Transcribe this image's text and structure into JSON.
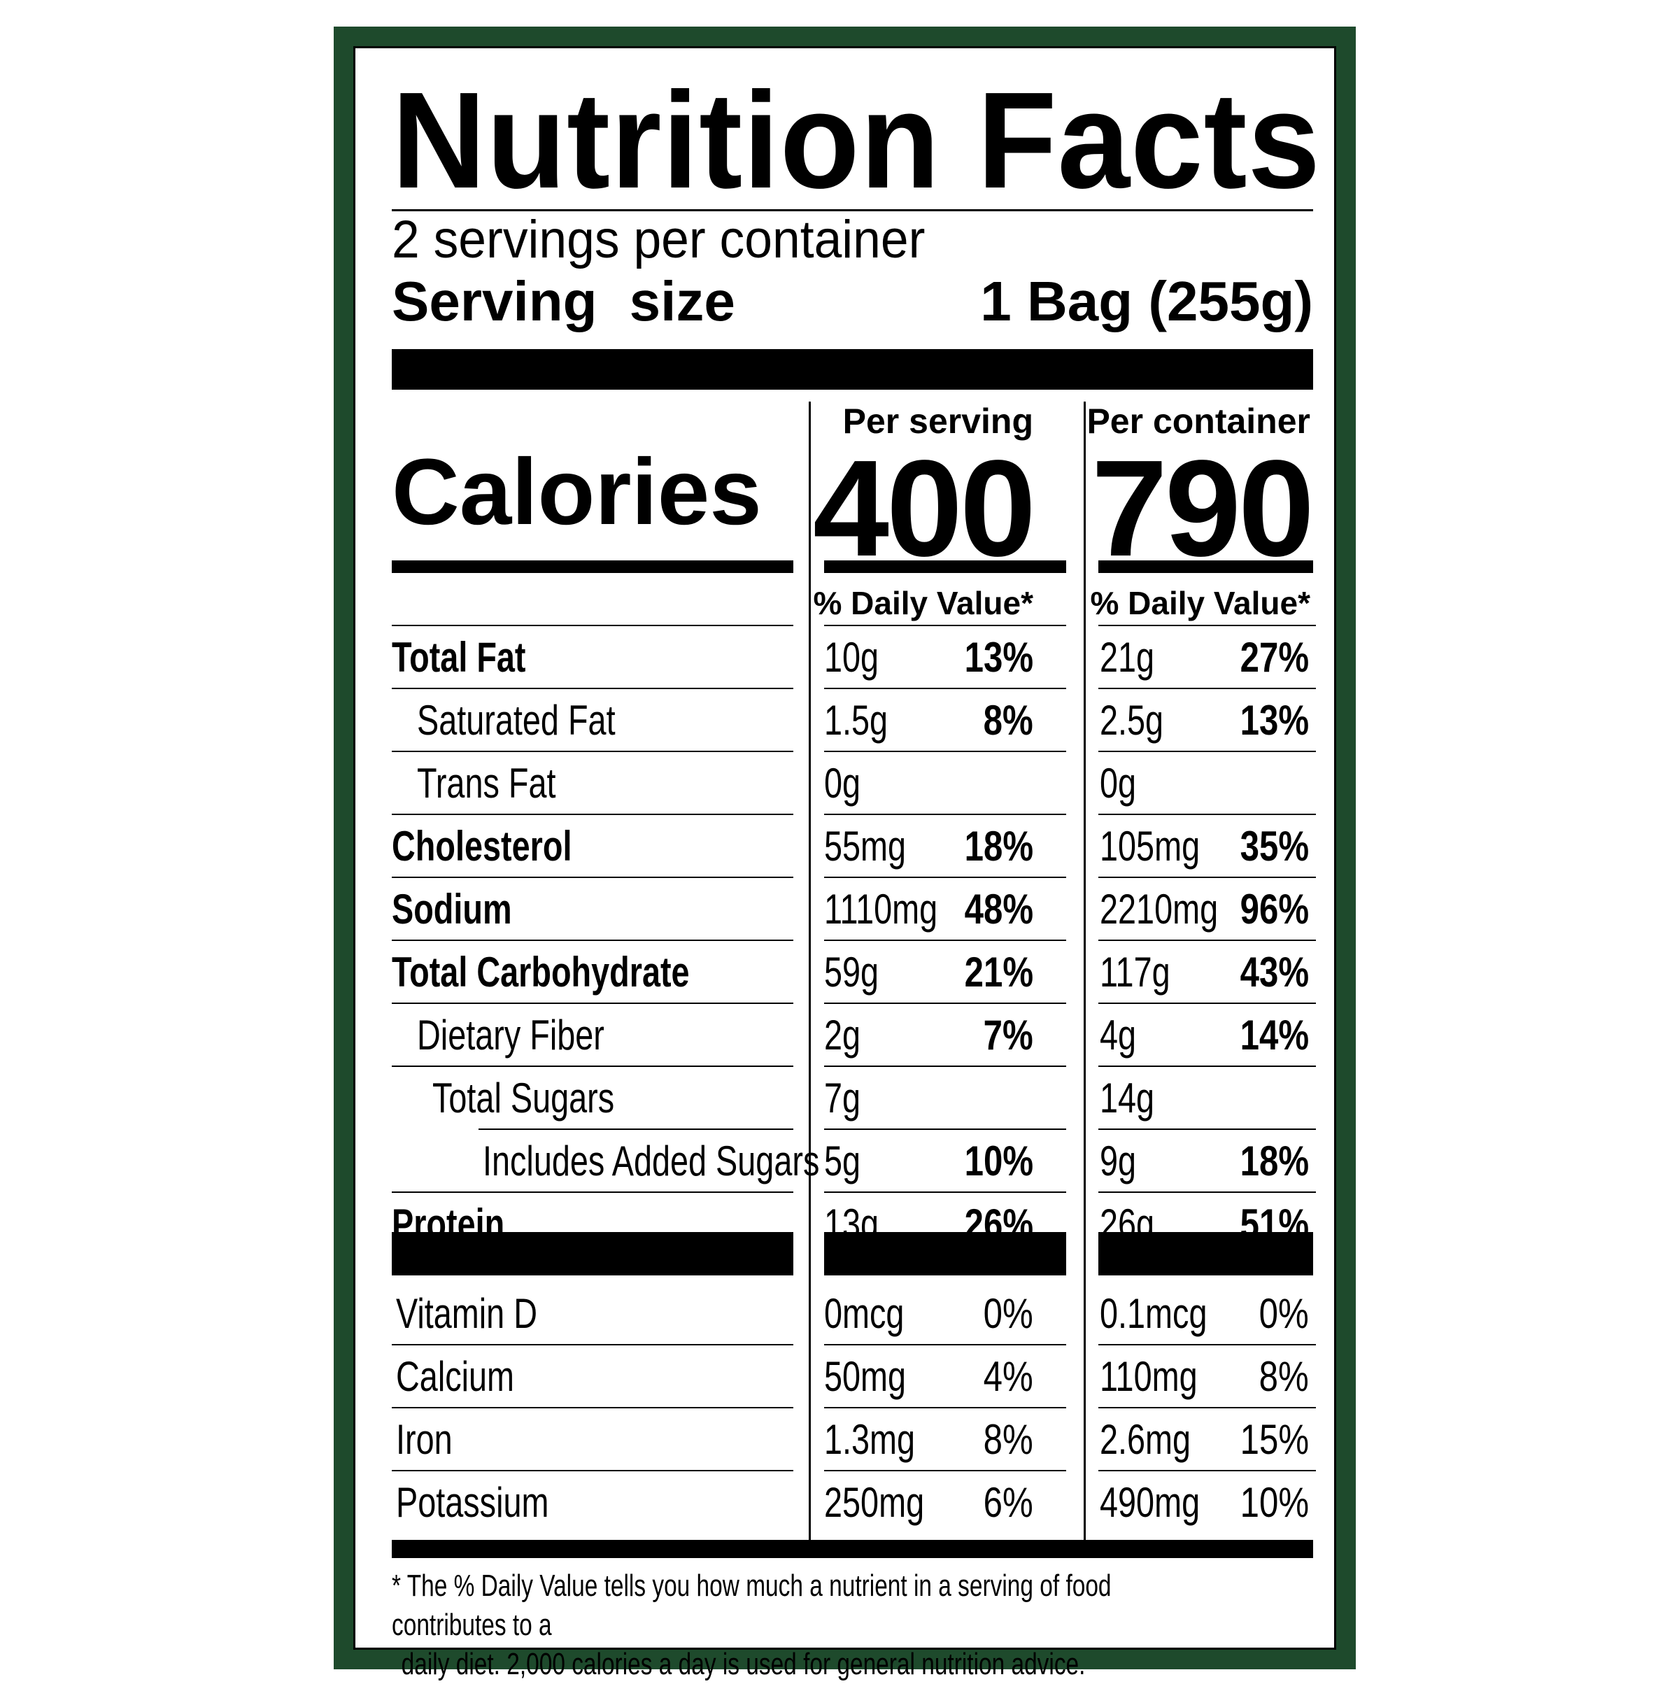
{
  "label": {
    "title": "Nutrition Facts",
    "servings_per_container": "2 servings per container",
    "serving_size_label": "Serving  size",
    "serving_size_value": "1 Bag (255g)",
    "per_serving_heading": "Per serving",
    "per_container_heading": "Per container",
    "calories_label": "Calories",
    "calories_per_serving": "400",
    "calories_per_container": "790",
    "daily_value_heading": "% Daily Value*",
    "nutrients": [
      {
        "name": "Total Fat",
        "serving_amount": "10g",
        "serving_dv": "13%",
        "container_amount": "21g",
        "container_dv": "27%"
      },
      {
        "name": "Saturated Fat",
        "serving_amount": "1.5g",
        "serving_dv": "8%",
        "container_amount": "2.5g",
        "container_dv": "13%"
      },
      {
        "name": "Trans Fat",
        "serving_amount": "0g",
        "serving_dv": "",
        "container_amount": "0g",
        "container_dv": ""
      },
      {
        "name": "Cholesterol",
        "serving_amount": "55mg",
        "serving_dv": "18%",
        "container_amount": "105mg",
        "container_dv": "35%"
      },
      {
        "name": "Sodium",
        "serving_amount": "1110mg",
        "serving_dv": "48%",
        "container_amount": "2210mg",
        "container_dv": "96%"
      },
      {
        "name": "Total Carbohydrate",
        "serving_amount": "59g",
        "serving_dv": "21%",
        "container_amount": "117g",
        "container_dv": "43%"
      },
      {
        "name": "Dietary Fiber",
        "serving_amount": "2g",
        "serving_dv": "7%",
        "container_amount": "4g",
        "container_dv": "14%"
      },
      {
        "name": "Total Sugars",
        "serving_amount": "7g",
        "serving_dv": "",
        "container_amount": "14g",
        "container_dv": ""
      },
      {
        "name": "Includes Added Sugars",
        "serving_amount": "5g",
        "serving_dv": "10%",
        "container_amount": "9g",
        "container_dv": "18%"
      },
      {
        "name": "Protein",
        "serving_amount": "13g",
        "serving_dv": "26%",
        "container_amount": "26g",
        "container_dv": "51%"
      }
    ],
    "vitamins": [
      {
        "name": "Vitamin D",
        "serving_amount": "0mcg",
        "serving_dv": "0%",
        "container_amount": "0.1mcg",
        "container_dv": "0%"
      },
      {
        "name": "Calcium",
        "serving_amount": "50mg",
        "serving_dv": "4%",
        "container_amount": "110mg",
        "container_dv": "8%"
      },
      {
        "name": "Iron",
        "serving_amount": "1.3mg",
        "serving_dv": "8%",
        "container_amount": "2.6mg",
        "container_dv": "15%"
      },
      {
        "name": "Potassium",
        "serving_amount": "250mg",
        "serving_dv": "6%",
        "container_amount": "490mg",
        "container_dv": "10%"
      }
    ],
    "footnote_line1": "* The % Daily Value tells you how much a nutrient in a serving of food contributes to a",
    "footnote_line2": "daily diet. 2,000 calories a day is used for general nutrition advice."
  },
  "colors": {
    "border": "#1e4a2c",
    "ink": "#000000",
    "background": "#ffffff"
  }
}
